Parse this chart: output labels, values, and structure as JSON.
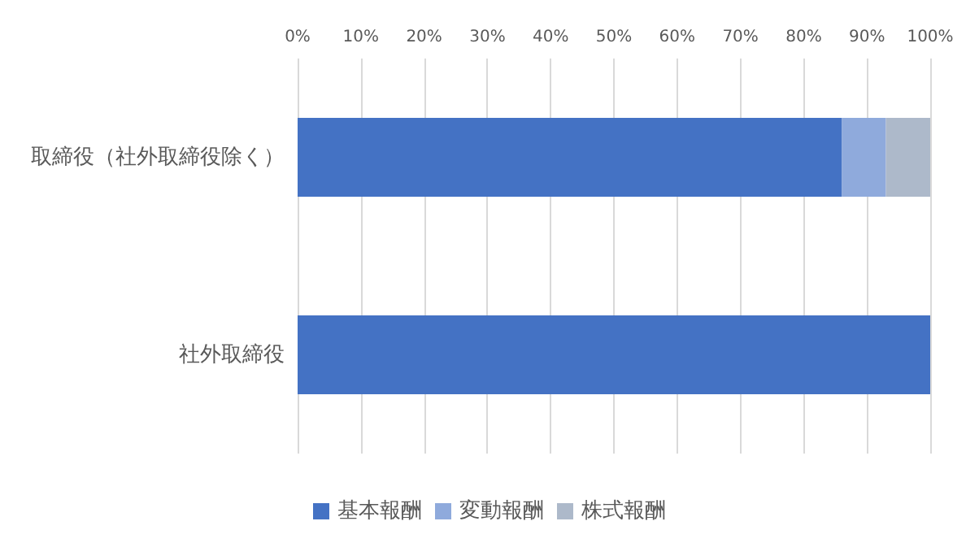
{
  "chart_data": {
    "type": "bar",
    "orientation": "horizontal",
    "stacked": true,
    "categories": [
      "取締役（社外取締役除く）",
      "社外取締役"
    ],
    "series": [
      {
        "name": "基本報酬",
        "color": "#4472c4",
        "values": [
          86,
          100
        ]
      },
      {
        "name": "変動報酬",
        "color": "#8faadc",
        "values": [
          7,
          0
        ]
      },
      {
        "name": "株式報酬",
        "color": "#adb9ca",
        "values": [
          7,
          0
        ]
      }
    ],
    "xlim": [
      0,
      100
    ],
    "xticks": [
      {
        "value": 0,
        "label": "0%"
      },
      {
        "value": 10,
        "label": "10%"
      },
      {
        "value": 20,
        "label": "20%"
      },
      {
        "value": 30,
        "label": "30%"
      },
      {
        "value": 40,
        "label": "40%"
      },
      {
        "value": 50,
        "label": "50%"
      },
      {
        "value": 60,
        "label": "60%"
      },
      {
        "value": 70,
        "label": "70%"
      },
      {
        "value": 80,
        "label": "80%"
      },
      {
        "value": 90,
        "label": "90%"
      },
      {
        "value": 100,
        "label": "100%"
      }
    ],
    "grid": "x",
    "legend": "bottom"
  }
}
